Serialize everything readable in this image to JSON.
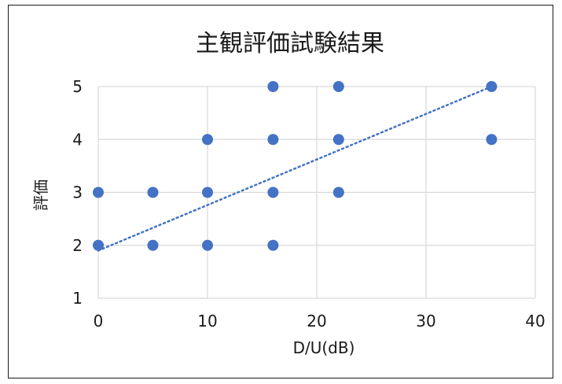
{
  "chart_data": {
    "type": "scatter",
    "title": "主観評価試験結果",
    "xlabel": "D/U(dB)",
    "ylabel": "評価",
    "xlim": [
      0,
      40
    ],
    "ylim": [
      1,
      5
    ],
    "x_ticks": [
      "0",
      "10",
      "20",
      "30",
      "40"
    ],
    "y_ticks": [
      "1",
      "2",
      "3",
      "4",
      "5"
    ],
    "grid": true,
    "legend": "none",
    "colors": {
      "points": "#4472C4",
      "trendline": "#4472C4",
      "grid": "#d9d9d9"
    },
    "series": [
      {
        "points": [
          [
            0,
            2
          ],
          [
            0,
            3
          ],
          [
            5,
            2
          ],
          [
            5,
            3
          ],
          [
            10,
            2
          ],
          [
            10,
            3
          ],
          [
            10,
            4
          ],
          [
            16,
            2
          ],
          [
            16,
            3
          ],
          [
            16,
            4
          ],
          [
            16,
            5
          ],
          [
            22,
            3
          ],
          [
            22,
            4
          ],
          [
            22,
            5
          ],
          [
            36,
            4
          ],
          [
            36,
            5
          ]
        ]
      }
    ],
    "trendline": {
      "type": "linear",
      "style": "dotted",
      "from": [
        0,
        1.9
      ],
      "to": [
        36,
        5
      ]
    }
  }
}
